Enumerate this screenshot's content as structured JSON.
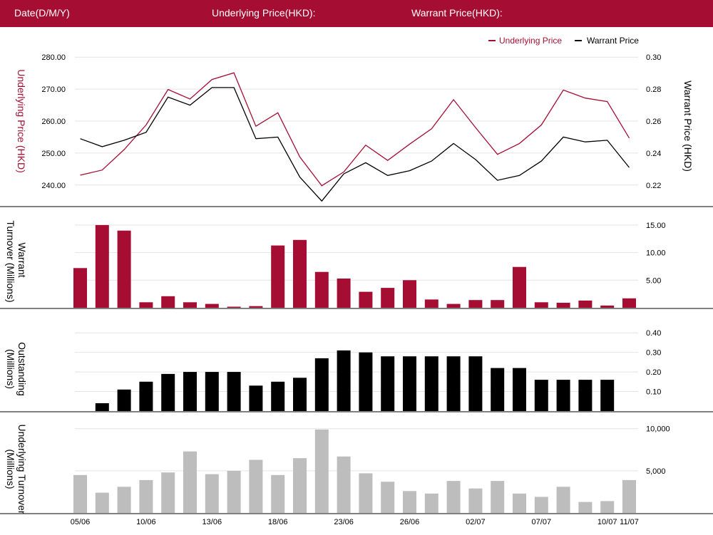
{
  "header": {
    "date_label": "Date(D/M/Y)",
    "underlying_label": "Underlying Price(HKD):",
    "warrant_label": "Warrant Price(HKD):"
  },
  "colors": {
    "brand": "#a50e32",
    "underlying_line": "#a50e32",
    "warrant_line": "#000000",
    "warrant_turnover_bar": "#a50e32",
    "outstanding_bar": "#000000",
    "underlying_turnover_bar": "#bdbdbd"
  },
  "chart_data": [
    {
      "type": "line",
      "legend": [
        {
          "name": "Underlying Price",
          "axis": "left"
        },
        {
          "name": "Warrant Price",
          "axis": "right"
        }
      ],
      "legend_position": "top-right",
      "ylabel_left": "Underlying Price (HKD)",
      "ylabel_right": "Warrant  Price (HKD)",
      "y_left_ticks": [
        "280.00",
        "270.00",
        "260.00",
        "250.00",
        "240.00"
      ],
      "y_left_lim": [
        235.5,
        284.5
      ],
      "y_right_ticks": [
        "0.30",
        "0.28",
        "0.26",
        "0.24",
        "0.22"
      ],
      "y_right_lim": [
        0.211,
        0.309
      ],
      "series": [
        {
          "name": "Underlying Price",
          "values": [
            243.1,
            244.7,
            251.1,
            258.8,
            269.9,
            266.9,
            273.0,
            275.1,
            258.4,
            262.6,
            248.8,
            239.8,
            244.1,
            252.5,
            247.7,
            252.8,
            257.6,
            266.7,
            258.0,
            249.6,
            253.0,
            258.8,
            269.7,
            267.2,
            266.1,
            254.7
          ]
        },
        {
          "name": "Warrant Price",
          "values": [
            0.249,
            0.244,
            0.248,
            0.253,
            0.275,
            0.27,
            0.281,
            0.281,
            0.249,
            0.25,
            0.225,
            0.21,
            0.227,
            0.234,
            0.226,
            0.229,
            0.235,
            0.246,
            0.236,
            0.223,
            0.226,
            0.235,
            0.25,
            0.247,
            0.248,
            0.231
          ]
        }
      ]
    },
    {
      "type": "bar",
      "ylabel": "Warrant  Turnover (Millions)",
      "y_ticks": [
        "15.00",
        "10.00",
        "5.00"
      ],
      "ylim": [
        0,
        16.8
      ],
      "values": [
        7.2,
        15.0,
        14.0,
        1.0,
        2.1,
        1.0,
        0.7,
        0.2,
        0.3,
        11.3,
        12.3,
        6.5,
        5.3,
        2.9,
        3.6,
        5.0,
        1.5,
        0.7,
        1.4,
        1.4,
        7.4,
        1.0,
        0.9,
        1.3,
        0.4,
        1.7
      ]
    },
    {
      "type": "bar",
      "ylabel": "Outstanding (Millions)",
      "y_ticks": [
        "0.40",
        "0.30",
        "0.20",
        "0.10"
      ],
      "ylim": [
        0,
        0.43
      ],
      "values": [
        null,
        0.04,
        0.11,
        0.15,
        0.19,
        0.2,
        0.2,
        0.2,
        0.13,
        0.15,
        0.17,
        0.27,
        0.31,
        0.3,
        0.28,
        0.28,
        0.28,
        0.28,
        0.28,
        0.22,
        0.22,
        0.16,
        0.16,
        0.16,
        0.16,
        null
      ]
    },
    {
      "type": "bar",
      "ylabel": "Underlying Turnover (Millions)",
      "y_ticks": [
        "10,000",
        "5,000"
      ],
      "ylim": [
        0,
        10400
      ],
      "values": [
        4500,
        2400,
        3100,
        3900,
        4800,
        7300,
        4600,
        5000,
        6300,
        4500,
        6500,
        9900,
        6700,
        4700,
        3700,
        2600,
        2300,
        3800,
        2900,
        3800,
        2300,
        1900,
        3100,
        1300,
        1400,
        3900
      ]
    }
  ],
  "x_tick_labels": [
    {
      "index": 0,
      "label": "05/06"
    },
    {
      "index": 3,
      "label": "10/06"
    },
    {
      "index": 6,
      "label": "13/06"
    },
    {
      "index": 9,
      "label": "18/06"
    },
    {
      "index": 12,
      "label": "23/06"
    },
    {
      "index": 15,
      "label": "26/06"
    },
    {
      "index": 18,
      "label": "02/07"
    },
    {
      "index": 21,
      "label": "07/07"
    },
    {
      "index": 24,
      "label": "10/07"
    },
    {
      "index": 25,
      "label": "11/07"
    }
  ]
}
